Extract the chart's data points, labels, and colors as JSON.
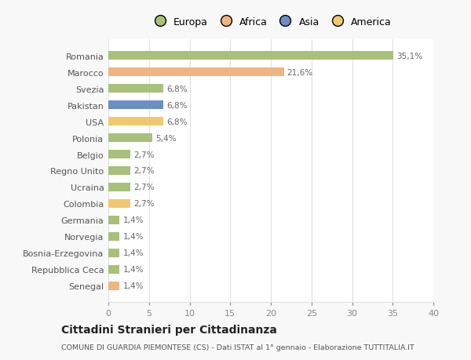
{
  "categories": [
    "Romania",
    "Marocco",
    "Svezia",
    "Pakistan",
    "USA",
    "Polonia",
    "Belgio",
    "Regno Unito",
    "Ucraina",
    "Colombia",
    "Germania",
    "Norvegia",
    "Bosnia-Erzegovina",
    "Repubblica Ceca",
    "Senegal"
  ],
  "values": [
    35.1,
    21.6,
    6.8,
    6.8,
    6.8,
    5.4,
    2.7,
    2.7,
    2.7,
    2.7,
    1.4,
    1.4,
    1.4,
    1.4,
    1.4
  ],
  "labels": [
    "35,1%",
    "21,6%",
    "6,8%",
    "6,8%",
    "6,8%",
    "5,4%",
    "2,7%",
    "2,7%",
    "2,7%",
    "2,7%",
    "1,4%",
    "1,4%",
    "1,4%",
    "1,4%",
    "1,4%"
  ],
  "colors": [
    "#a8c07a",
    "#f0b482",
    "#a8c07a",
    "#6b8fc4",
    "#f0c96e",
    "#a8c07a",
    "#a8c07a",
    "#a8c07a",
    "#a8c07a",
    "#f0c96e",
    "#a8c07a",
    "#a8c07a",
    "#a8c07a",
    "#a8c07a",
    "#f0b482"
  ],
  "legend_labels": [
    "Europa",
    "Africa",
    "Asia",
    "America"
  ],
  "legend_colors": [
    "#a8c07a",
    "#f0b482",
    "#6b8fc4",
    "#f0c96e"
  ],
  "title": "Cittadini Stranieri per Cittadinanza",
  "subtitle": "COMUNE DI GUARDIA PIEMONTESE (CS) - Dati ISTAT al 1° gennaio - Elaborazione TUTTITALIA.IT",
  "xlim": [
    0,
    40
  ],
  "xticks": [
    0,
    5,
    10,
    15,
    20,
    25,
    30,
    35,
    40
  ],
  "background_color": "#f8f8f8",
  "bar_background": "#ffffff",
  "grid_color": "#e0e0e0",
  "label_color": "#666666",
  "ytick_color": "#555555"
}
